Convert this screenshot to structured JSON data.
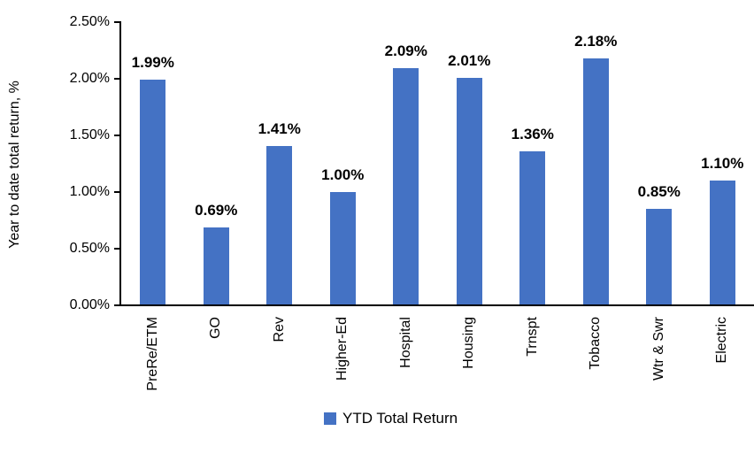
{
  "chart_data": {
    "type": "bar",
    "title": "",
    "ylabel": "Year to date total return, %",
    "xlabel": "",
    "categories": [
      "PreRe/ETM",
      "GO",
      "Rev",
      "Higher-Ed",
      "Hospital",
      "Housing",
      "Trnspt",
      "Tobacco",
      "Wtr & Swr",
      "Electric"
    ],
    "values": [
      1.99,
      0.69,
      1.41,
      1.0,
      2.09,
      2.01,
      1.36,
      2.18,
      0.85,
      1.1
    ],
    "data_labels": [
      "1.99%",
      "0.69%",
      "1.41%",
      "1.00%",
      "2.09%",
      "2.01%",
      "1.36%",
      "2.18%",
      "0.85%",
      "1.10%"
    ],
    "ylim": [
      0,
      2.5
    ],
    "yticks": [
      0,
      0.5,
      1.0,
      1.5,
      2.0,
      2.5
    ],
    "ytick_labels": [
      "0.00%",
      "0.50%",
      "1.00%",
      "1.50%",
      "2.00%",
      "2.50%"
    ],
    "grid": false,
    "legend_position": "bottom",
    "legend": {
      "label": "YTD Total Return"
    },
    "colors": {
      "bar": "#4472C4",
      "axis": "#000000",
      "text": "#000000"
    }
  }
}
